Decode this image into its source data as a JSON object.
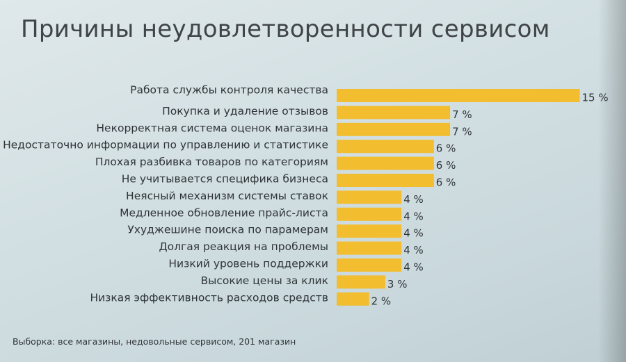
{
  "chart_data": {
    "type": "bar",
    "orientation": "horizontal",
    "title": "Причины неудовлетворенности сервисом",
    "categories": [
      "Работа службы контроля качества",
      "Покупка и удаление отзывов",
      "Некорректная система оценок магазина",
      "Недостаточно информации по управлению и статистике",
      "Плохая разбивка товаров по категориям",
      "Не учитывается специфика бизнеса",
      "Неясный механизм системы ставок",
      "Медленное обновление прайс-листа",
      "Ухуджешине поиска по парамерам",
      "Долгая реакция на проблемы",
      "Низкий уровень поддержки",
      "Высокие цены за клик",
      "Низкая эффективность расходов средств"
    ],
    "values": [
      15,
      7,
      7,
      6,
      6,
      6,
      4,
      4,
      4,
      4,
      4,
      3,
      2
    ],
    "value_labels": [
      "15 %",
      "7 %",
      "7 %",
      "6 %",
      "6 %",
      "6 %",
      "4 %",
      "4 %",
      "4 %",
      "4 %",
      "4 %",
      "3 %",
      "2 %"
    ],
    "bar_color": "#f2bd2e",
    "grid": false,
    "legend": "none"
  },
  "footnote": "Выборка: все магазины, недовольные сервисом, 201 магазин"
}
